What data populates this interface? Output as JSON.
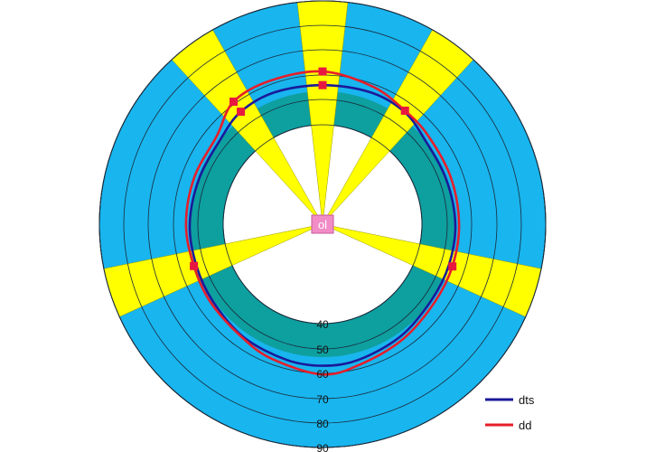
{
  "chart_data": {
    "type": "radar",
    "center_label": "ol",
    "radial_axis": {
      "ticks": [
        "40",
        "50",
        "60",
        "70",
        "80",
        "90"
      ],
      "direction": "outward"
    },
    "colors": {
      "outer_ring": "#19b5ee",
      "inner_ring": "#0e9f9f",
      "highlight": "#ffff00",
      "dts": "#1a1a9a",
      "dd": "#e61e2a",
      "marker": "#e8173f",
      "center_box": "#f28cc6"
    },
    "highlight_sectors_degrees": [
      {
        "center": 0,
        "width": 13
      },
      {
        "center": 36,
        "width": 13
      },
      {
        "center": -36,
        "width": 13
      },
      {
        "center": 108,
        "width": 13
      },
      {
        "center": -108,
        "width": 13
      }
    ],
    "series": [
      {
        "name": "dts",
        "color": "#1a1a9a",
        "angles": [
          0,
          20,
          36,
          50,
          70,
          90,
          108,
          125,
          145,
          165,
          180,
          195,
          215,
          235,
          252,
          270,
          290,
          310,
          324,
          340
        ],
        "values": [
          56,
          56.5,
          56,
          53.5,
          53,
          53.5,
          53.5,
          53.5,
          55,
          56.5,
          57,
          56.5,
          55.5,
          54,
          53.5,
          53.5,
          53,
          53.5,
          56,
          56.5
        ],
        "markers_at": [
          0,
          324
        ]
      },
      {
        "name": "dd",
        "color": "#e61e2a",
        "angles": [
          0,
          20,
          36,
          50,
          70,
          90,
          108,
          125,
          145,
          165,
          180,
          200,
          215,
          235,
          252,
          270,
          290,
          310,
          324,
          340
        ],
        "values": [
          61.5,
          59,
          56.5,
          55.5,
          55,
          55,
          55,
          55,
          56.5,
          58.5,
          60.5,
          58,
          56,
          55,
          54.5,
          55,
          55,
          55.5,
          61,
          61.5
        ],
        "markers_at": [
          0,
          36,
          108,
          252,
          324
        ]
      }
    ],
    "legend": {
      "position": "bottom-right",
      "entries": [
        {
          "name": "dts",
          "color": "#1a1a9a"
        },
        {
          "name": "dd",
          "color": "#e61e2a"
        }
      ]
    }
  }
}
